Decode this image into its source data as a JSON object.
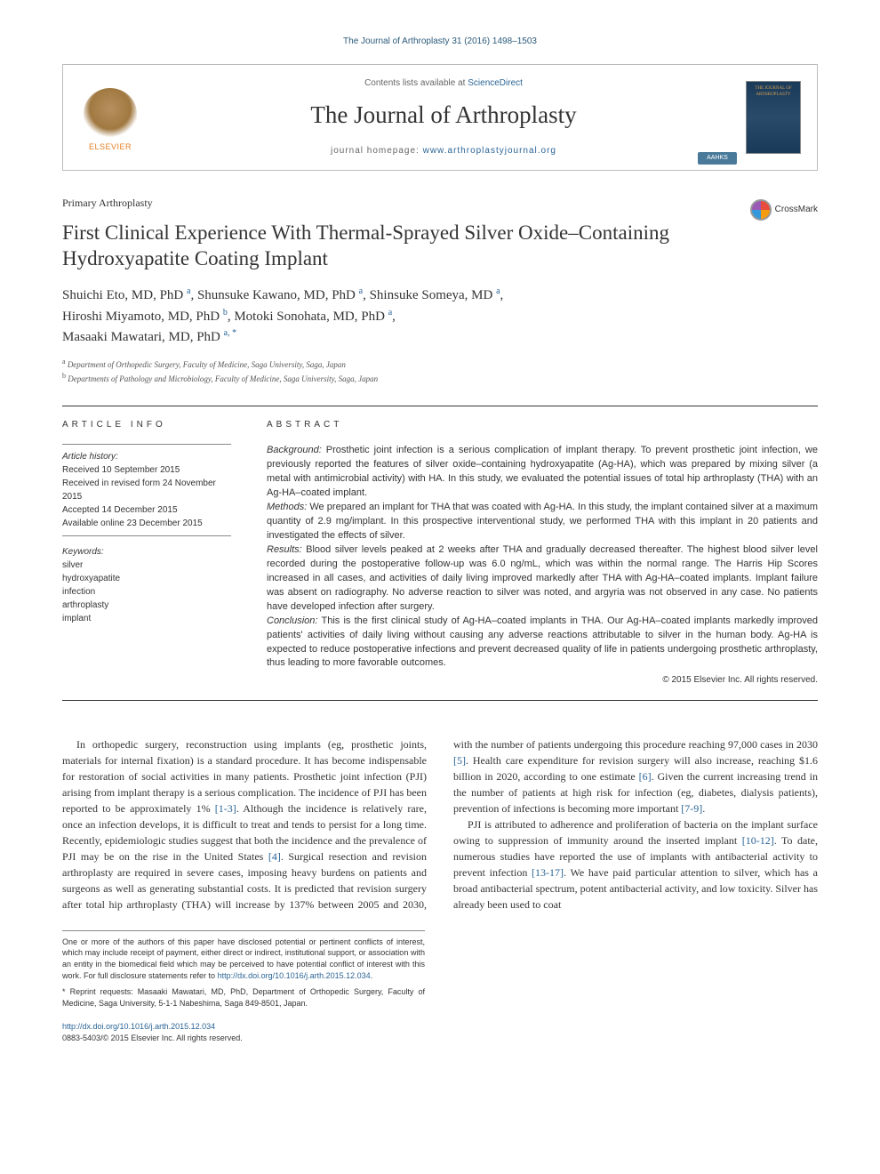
{
  "citation": "The Journal of Arthroplasty 31 (2016) 1498–1503",
  "masthead": {
    "contents_prefix": "Contents lists available at ",
    "contents_link": "ScienceDirect",
    "journal_name": "The Journal of Arthroplasty",
    "homepage_prefix": "journal homepage: ",
    "homepage_url": "www.arthroplastyjournal.org",
    "publisher": "ELSEVIER",
    "cover_label": "THE JOURNAL OF ARTHROPLASTY",
    "society_badge": "AAHKS"
  },
  "article": {
    "type": "Primary Arthroplasty",
    "title": "First Clinical Experience With Thermal-Sprayed Silver Oxide–Containing Hydroxyapatite Coating Implant",
    "crossmark_label": "CrossMark"
  },
  "authors": [
    {
      "name": "Shuichi Eto, MD, PhD",
      "affil": "a"
    },
    {
      "name": "Shunsuke Kawano, MD, PhD",
      "affil": "a"
    },
    {
      "name": "Shinsuke Someya, MD",
      "affil": "a"
    },
    {
      "name": "Hiroshi Miyamoto, MD, PhD",
      "affil": "b"
    },
    {
      "name": "Motoki Sonohata, MD, PhD",
      "affil": "a"
    },
    {
      "name": "Masaaki Mawatari, MD, PhD",
      "affil": "a, *"
    }
  ],
  "affiliations": {
    "a": "Department of Orthopedic Surgery, Faculty of Medicine, Saga University, Saga, Japan",
    "b": "Departments of Pathology and Microbiology, Faculty of Medicine, Saga University, Saga, Japan"
  },
  "info": {
    "heading": "ARTICLE INFO",
    "history_label": "Article history:",
    "received": "Received 10 September 2015",
    "revised": "Received in revised form 24 November 2015",
    "accepted": "Accepted 14 December 2015",
    "online": "Available online 23 December 2015",
    "keywords_label": "Keywords:",
    "keywords": [
      "silver",
      "hydroxyapatite",
      "infection",
      "arthroplasty",
      "implant"
    ]
  },
  "abstract": {
    "heading": "ABSTRACT",
    "background_label": "Background:",
    "background": "Prosthetic joint infection is a serious complication of implant therapy. To prevent prosthetic joint infection, we previously reported the features of silver oxide–containing hydroxyapatite (Ag-HA), which was prepared by mixing silver (a metal with antimicrobial activity) with HA. In this study, we evaluated the potential issues of total hip arthroplasty (THA) with an Ag-HA–coated implant.",
    "methods_label": "Methods:",
    "methods": "We prepared an implant for THA that was coated with Ag-HA. In this study, the implant contained silver at a maximum quantity of 2.9 mg/implant. In this prospective interventional study, we performed THA with this implant in 20 patients and investigated the effects of silver.",
    "results_label": "Results:",
    "results": "Blood silver levels peaked at 2 weeks after THA and gradually decreased thereafter. The highest blood silver level recorded during the postoperative follow-up was 6.0 ng/mL, which was within the normal range. The Harris Hip Scores increased in all cases, and activities of daily living improved markedly after THA with Ag-HA–coated implants. Implant failure was absent on radiography. No adverse reaction to silver was noted, and argyria was not observed in any case. No patients have developed infection after surgery.",
    "conclusion_label": "Conclusion:",
    "conclusion": "This is the first clinical study of Ag-HA–coated implants in THA. Our Ag-HA–coated implants markedly improved patients' activities of daily living without causing any adverse reactions attributable to silver in the human body. Ag-HA is expected to reduce postoperative infections and prevent decreased quality of life in patients undergoing prosthetic arthroplasty, thus leading to more favorable outcomes.",
    "copyright": "© 2015 Elsevier Inc. All rights reserved."
  },
  "body": {
    "p1a": "In orthopedic surgery, reconstruction using implants (eg, prosthetic joints, materials for internal fixation) is a standard procedure. It has become indispensable for restoration of social activities in many patients. Prosthetic joint infection (PJI) arising from implant therapy is a serious complication. The incidence of PJI has been reported to be approximately 1% ",
    "ref1": "[1-3]",
    "p1b": ". Although the incidence is relatively rare, once an infection develops, it is difficult to treat and tends to persist for a long time. Recently, epidemiologic studies suggest that both the incidence and the prevalence of PJI may be on",
    "p2a": "the rise in the United States ",
    "ref4": "[4]",
    "p2b": ". Surgical resection and revision arthroplasty are required in severe cases, imposing heavy burdens on patients and surgeons as well as generating substantial costs. It is predicted that revision surgery after total hip arthroplasty (THA) will increase by 137% between 2005 and 2030, with the number of patients undergoing this procedure reaching 97,000 cases in 2030 ",
    "ref5": "[5]",
    "p2c": ". Health care expenditure for revision surgery will also increase, reaching $1.6 billion in 2020, according to one estimate ",
    "ref6": "[6]",
    "p2d": ". Given the current increasing trend in the number of patients at high risk for infection (eg, diabetes, dialysis patients), prevention of infections is becoming more important ",
    "ref7": "[7-9]",
    "p2e": ".",
    "p3a": "PJI is attributed to adherence and proliferation of bacteria on the implant surface owing to suppression of immunity around the inserted implant ",
    "ref10": "[10-12]",
    "p3b": ". To date, numerous studies have reported the use of implants with antibacterial activity to prevent infection ",
    "ref13": "[13-17]",
    "p3c": ". We have paid particular attention to silver, which has a broad antibacterial spectrum, potent antibacterial activity, and low toxicity. Silver has already been used to coat"
  },
  "footnotes": {
    "coi": "One or more of the authors of this paper have disclosed potential or pertinent conflicts of interest, which may include receipt of payment, either direct or indirect, institutional support, or association with an entity in the biomedical field which may be perceived to have potential conflict of interest with this work. For full disclosure statements refer to ",
    "coi_link": "http://dx.doi.org/10.1016/j.arth.2015.12.034",
    "reprint": "* Reprint requests: Masaaki Mawatari, MD, PhD, Department of Orthopedic Surgery, Faculty of Medicine, Saga University, 5-1-1 Nabeshima, Saga 849-8501, Japan."
  },
  "doi": {
    "url": "http://dx.doi.org/10.1016/j.arth.2015.12.034",
    "issn_line": "0883-5403/© 2015 Elsevier Inc. All rights reserved."
  },
  "colors": {
    "link": "#2a6496",
    "text": "#333333",
    "rule": "#333333",
    "light_rule": "#888888"
  }
}
